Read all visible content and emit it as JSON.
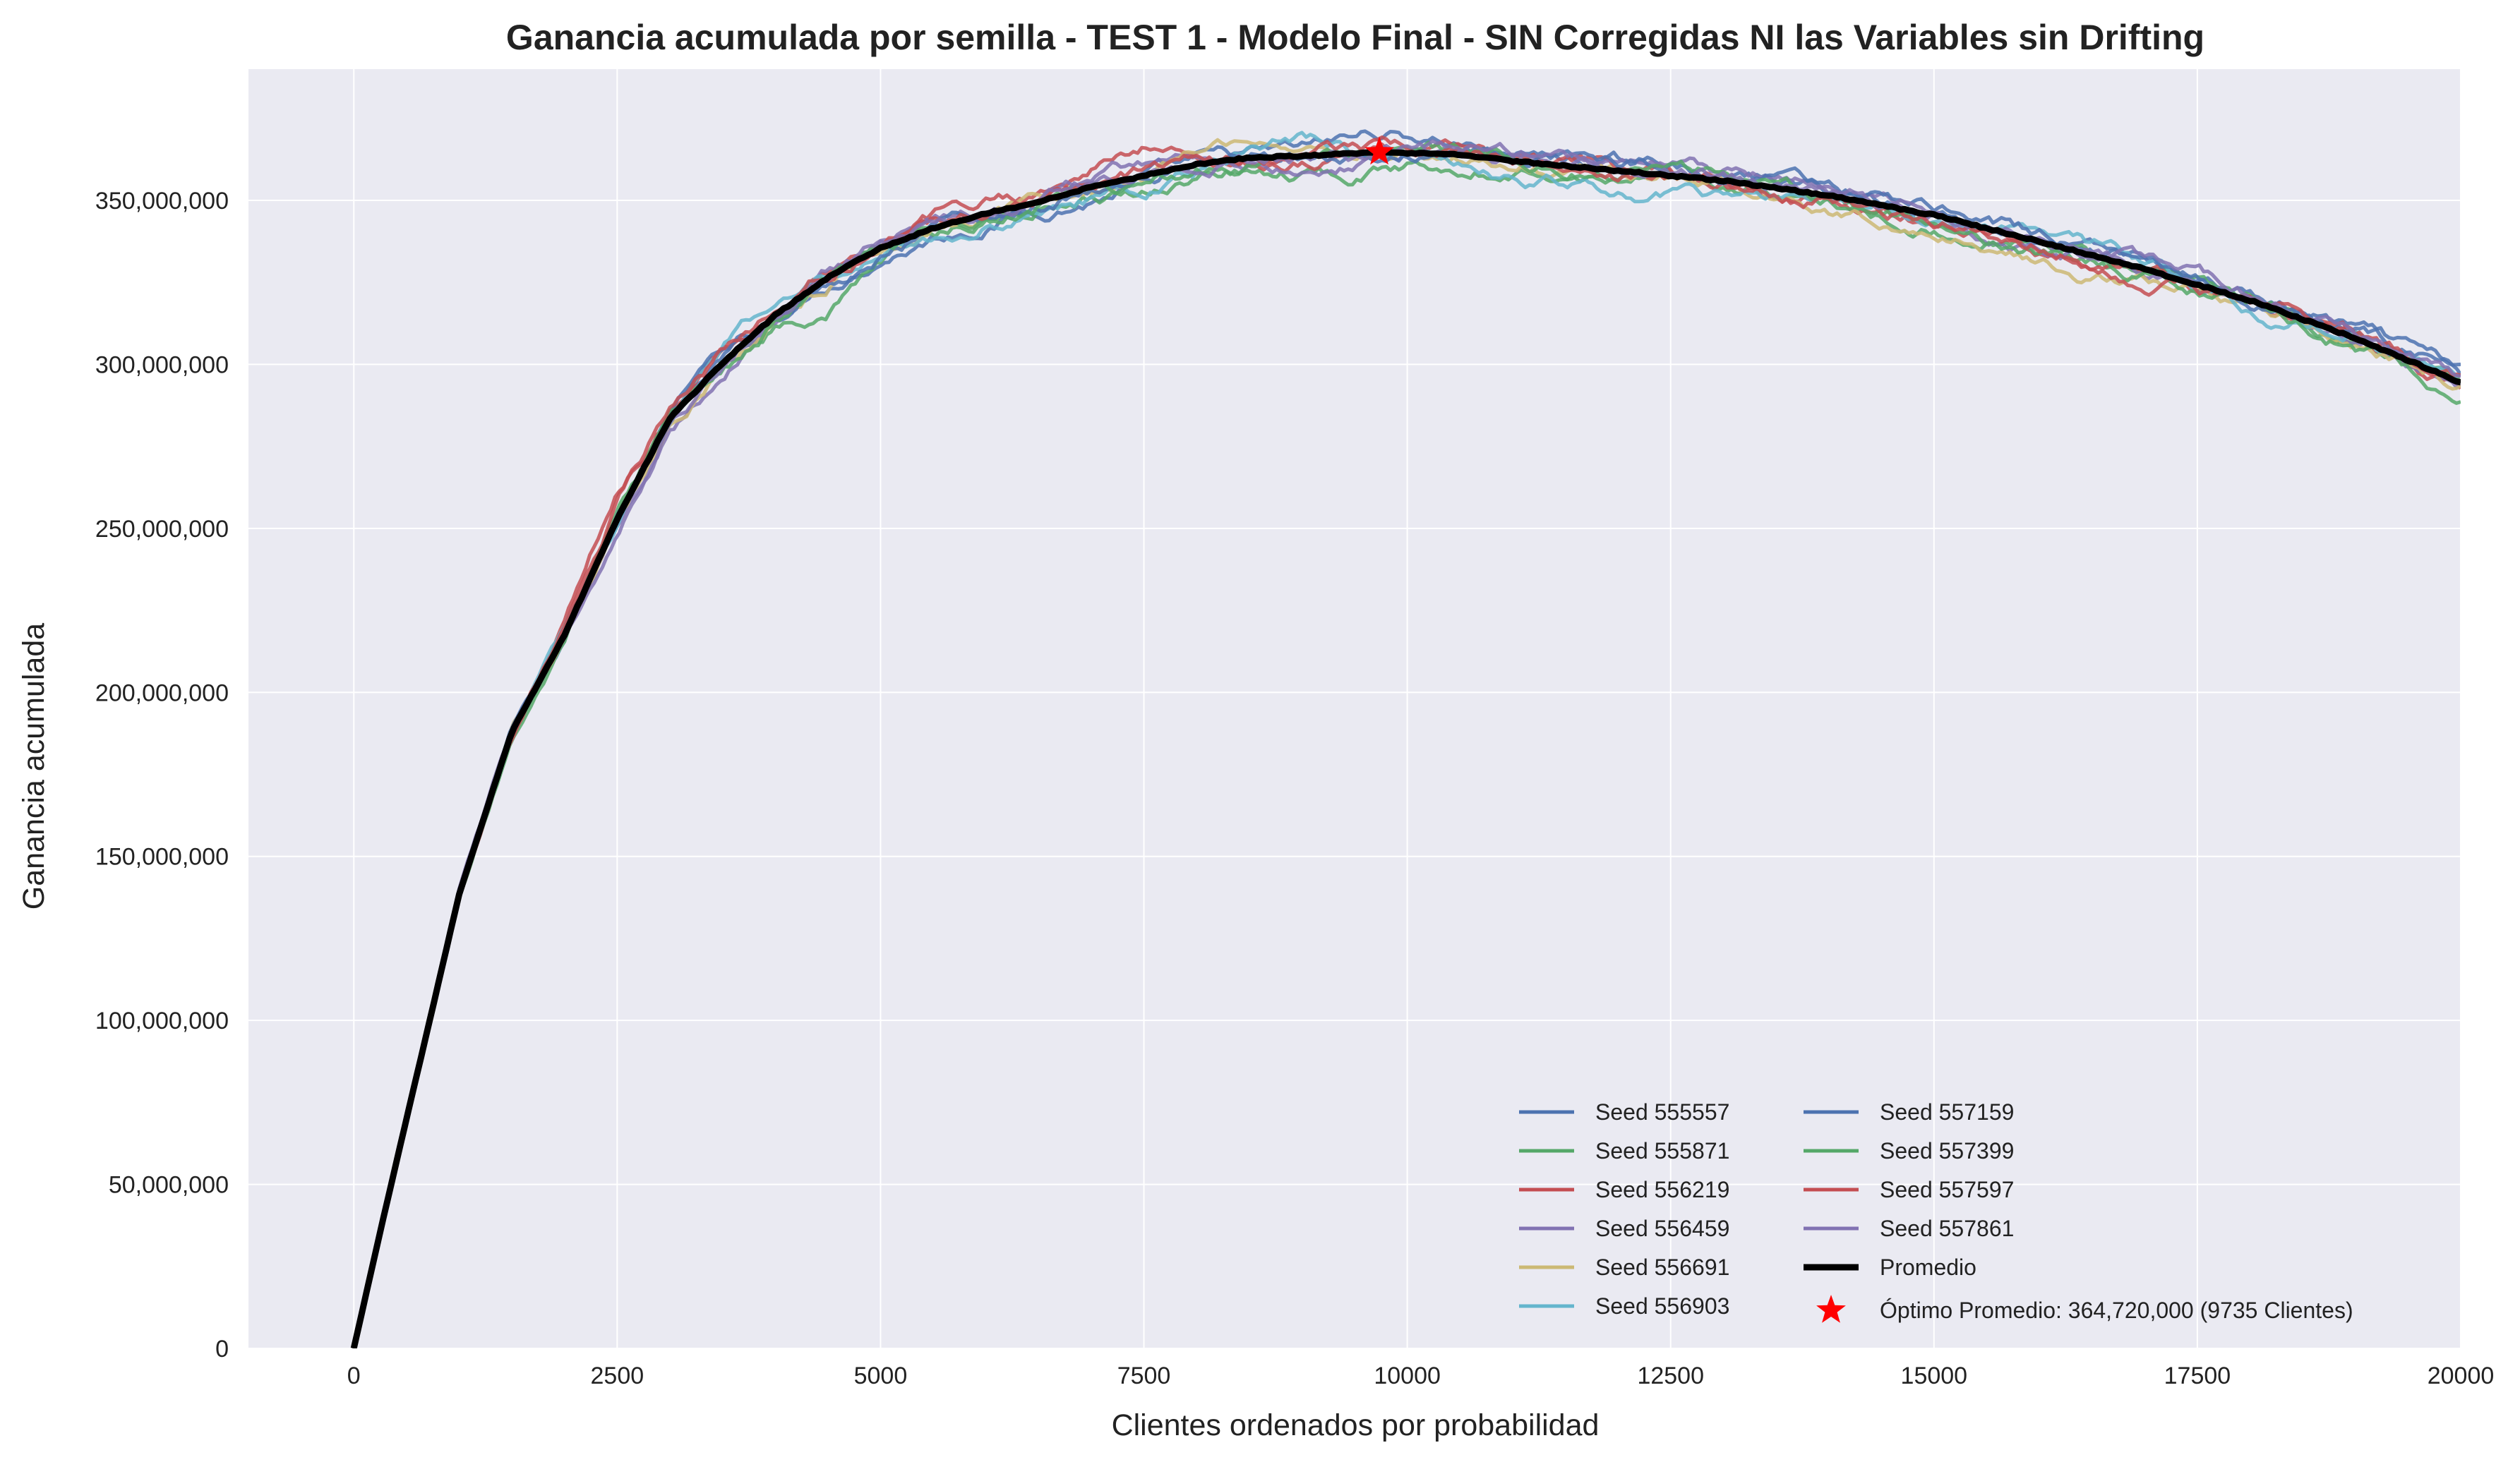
{
  "chart_data": {
    "type": "line",
    "title": "Ganancia acumulada por semilla - TEST 1 - Modelo Final  - SIN Corregidas NI las Variables sin Drifting",
    "xlabel": "Clientes ordenados por probabilidad",
    "ylabel": "Ganancia acumulada",
    "xlim": [
      -1000,
      20000
    ],
    "ylim": [
      0,
      390000000
    ],
    "x_ticks": [
      0,
      2500,
      5000,
      7500,
      10000,
      12500,
      15000,
      17500,
      20000
    ],
    "x_tick_labels": [
      "0",
      "2500",
      "5000",
      "7500",
      "10000",
      "12500",
      "15000",
      "17500",
      "20000"
    ],
    "y_ticks": [
      0,
      50000000,
      100000000,
      150000000,
      200000000,
      250000000,
      300000000,
      350000000
    ],
    "y_tick_labels": [
      "0",
      "50,000,000",
      "100,000,000",
      "150,000,000",
      "200,000,000",
      "250,000,000",
      "300,000,000",
      "350,000,000"
    ],
    "grid": true,
    "legend_position": "lower-right",
    "x": [
      0,
      250,
      500,
      750,
      1000,
      1500,
      2000,
      2500,
      3000,
      3500,
      4000,
      4500,
      5000,
      5500,
      6000,
      6500,
      7000,
      7500,
      8000,
      8500,
      9000,
      9735,
      10500,
      11000,
      12000,
      13000,
      14000,
      15000,
      16000,
      17000,
      18000,
      19000,
      20000
    ],
    "series": [
      {
        "name": "Seed 555557",
        "color": "#4c72b0",
        "values": [
          0,
          36000000,
          70000000,
          105000000,
          138000000,
          190000000,
          218000000,
          254000000,
          283000000,
          300000000,
          314000000,
          325000000,
          334000000,
          340000000,
          344000000,
          348000000,
          351000000,
          356000000,
          360000000,
          362000000,
          364000000,
          370000000,
          368000000,
          364000000,
          361000000,
          358000000,
          353000000,
          347000000,
          339000000,
          331000000,
          321000000,
          310000000,
          296000000
        ]
      },
      {
        "name": "Seed 555871",
        "color": "#55a868",
        "values": [
          0,
          35000000,
          69000000,
          104000000,
          137000000,
          186000000,
          214000000,
          252000000,
          282000000,
          299000000,
          312000000,
          318000000,
          332000000,
          339000000,
          344000000,
          348000000,
          352000000,
          354000000,
          358000000,
          360000000,
          359000000,
          360000000,
          362000000,
          362000000,
          359000000,
          356000000,
          350000000,
          343000000,
          336000000,
          327000000,
          318000000,
          305000000,
          291000000
        ]
      },
      {
        "name": "Seed 556219",
        "color": "#c44e52",
        "values": [
          0,
          37000000,
          71000000,
          103000000,
          137000000,
          185000000,
          222000000,
          262000000,
          286000000,
          302000000,
          316000000,
          330000000,
          339000000,
          345000000,
          350000000,
          353000000,
          360000000,
          366000000,
          364000000,
          362000000,
          363000000,
          366000000,
          365000000,
          362000000,
          358000000,
          355000000,
          350000000,
          344000000,
          337000000,
          329000000,
          320000000,
          308000000,
          294000000
        ]
      },
      {
        "name": "Seed 556459",
        "color": "#8172b2",
        "values": [
          0,
          36000000,
          70000000,
          104000000,
          140000000,
          188000000,
          216000000,
          250000000,
          282000000,
          299000000,
          314000000,
          328000000,
          337000000,
          343000000,
          347000000,
          351000000,
          358000000,
          362000000,
          362000000,
          363000000,
          361000000,
          364000000,
          364000000,
          363000000,
          360000000,
          357000000,
          352000000,
          346000000,
          338000000,
          330000000,
          321000000,
          309000000,
          295000000
        ]
      },
      {
        "name": "Seed 556691",
        "color": "#ccb974",
        "values": [
          0,
          36000000,
          70000000,
          104000000,
          138000000,
          189000000,
          218000000,
          253000000,
          283000000,
          300000000,
          315000000,
          326000000,
          336000000,
          341000000,
          345000000,
          348000000,
          352000000,
          355000000,
          364000000,
          370000000,
          366000000,
          365000000,
          364000000,
          361000000,
          359000000,
          355000000,
          349000000,
          342000000,
          332000000,
          325000000,
          316000000,
          306000000,
          295000000
        ]
      },
      {
        "name": "Seed 556903",
        "color": "#64b5cd",
        "values": [
          0,
          34000000,
          69000000,
          104000000,
          139000000,
          190000000,
          219000000,
          253000000,
          285000000,
          305000000,
          318000000,
          327000000,
          335000000,
          339000000,
          344000000,
          347000000,
          351000000,
          353000000,
          359000000,
          366000000,
          369000000,
          364000000,
          361000000,
          357000000,
          353000000,
          351000000,
          350000000,
          345000000,
          340000000,
          330000000,
          319000000,
          309000000,
          296000000
        ]
      },
      {
        "name": "Seed 557159",
        "color": "#4c72b0",
        "values": [
          0,
          35000000,
          70000000,
          104000000,
          139000000,
          189000000,
          217000000,
          252000000,
          283000000,
          300000000,
          314000000,
          326000000,
          335000000,
          341000000,
          346000000,
          350000000,
          354000000,
          357000000,
          361000000,
          363000000,
          364000000,
          366000000,
          367000000,
          366000000,
          363000000,
          359000000,
          354000000,
          347000000,
          339000000,
          331000000,
          320000000,
          309000000,
          297000000
        ]
      },
      {
        "name": "Seed 557399",
        "color": "#55a868",
        "values": [
          0,
          35000000,
          70000000,
          104000000,
          138000000,
          188000000,
          216000000,
          251000000,
          282000000,
          299000000,
          313000000,
          325000000,
          334000000,
          340000000,
          345000000,
          349000000,
          353000000,
          356000000,
          359000000,
          361000000,
          363000000,
          362000000,
          364000000,
          364000000,
          362000000,
          358000000,
          352000000,
          344000000,
          336000000,
          328000000,
          318000000,
          306000000,
          292000000
        ]
      },
      {
        "name": "Seed 557597",
        "color": "#c44e52",
        "values": [
          0,
          36000000,
          70000000,
          103000000,
          138000000,
          187000000,
          220000000,
          257000000,
          286000000,
          302000000,
          316000000,
          328000000,
          338000000,
          344000000,
          348000000,
          351000000,
          355000000,
          358000000,
          362000000,
          363000000,
          365000000,
          367000000,
          366000000,
          361000000,
          357000000,
          355000000,
          351000000,
          345000000,
          337000000,
          328000000,
          319000000,
          308000000,
          294000000
        ]
      },
      {
        "name": "Seed 557861",
        "color": "#8172b2",
        "values": [
          0,
          36000000,
          70000000,
          104000000,
          140000000,
          188000000,
          215000000,
          250000000,
          282000000,
          300000000,
          315000000,
          327000000,
          336000000,
          342000000,
          347000000,
          351000000,
          356000000,
          360000000,
          362000000,
          363000000,
          362000000,
          364000000,
          364000000,
          363000000,
          360000000,
          357000000,
          352000000,
          347000000,
          339000000,
          331000000,
          321000000,
          310000000,
          296000000
        ]
      },
      {
        "name": "Promedio",
        "color": "#000000",
        "values": [
          0,
          35500000,
          70000000,
          104000000,
          138500000,
          188000000,
          217500000,
          253000000,
          283500000,
          300500000,
          315000000,
          326500000,
          335500000,
          341500000,
          346000000,
          349500000,
          354000000,
          357500000,
          361000000,
          363000000,
          363500000,
          364720000,
          364000000,
          362000000,
          359000000,
          356000000,
          351500000,
          345500000,
          337500000,
          329000000,
          319500000,
          308000000,
          294500000
        ]
      }
    ],
    "optimum": {
      "label": "Óptimo Promedio: 364,720,000 (9735 Clientes)",
      "x": 9735,
      "y": 364720000,
      "color": "#ff0000"
    },
    "colors": {
      "plot_background": "#eaeaf2",
      "grid": "#ffffff",
      "optimum": "#ff0000"
    }
  }
}
